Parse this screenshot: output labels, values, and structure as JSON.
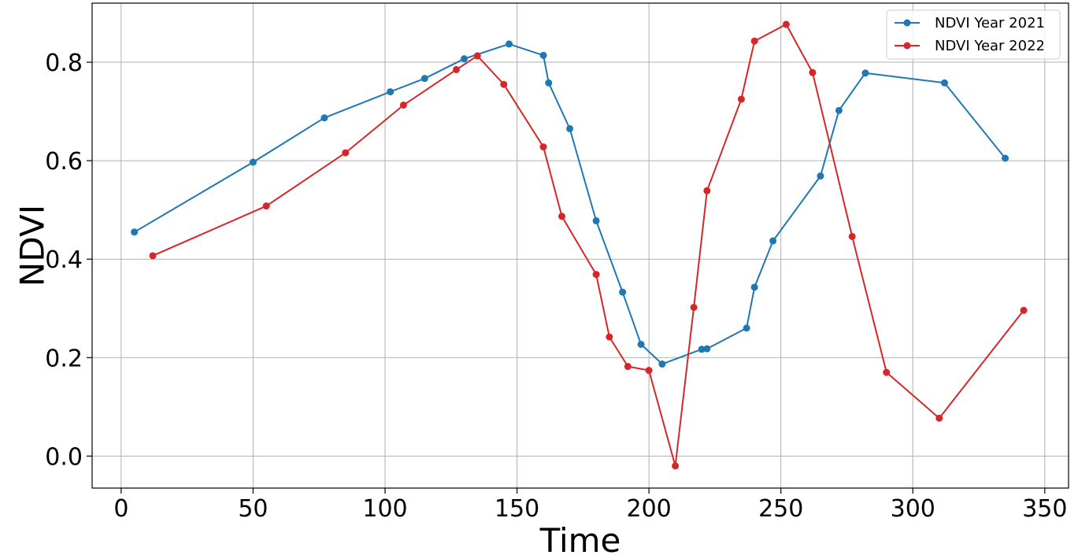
{
  "chart_data": {
    "type": "line",
    "xlabel": "Time",
    "ylabel": "NDVI",
    "xlim": [
      -11,
      359
    ],
    "ylim": [
      -0.065,
      0.92
    ],
    "xticks": [
      0,
      50,
      100,
      150,
      200,
      250,
      300,
      350
    ],
    "yticks": [
      0.0,
      0.2,
      0.4,
      0.6,
      0.8
    ],
    "ytick_labels": [
      "0.0",
      "0.2",
      "0.4",
      "0.6",
      "0.8"
    ],
    "grid": true,
    "legend_position": "top-right",
    "series": [
      {
        "name": "NDVI Year 2021",
        "color": "#1f77b4",
        "marker": "circle",
        "x": [
          5,
          50,
          77,
          102,
          115,
          130,
          147,
          160,
          162,
          170,
          180,
          190,
          197,
          205,
          220,
          222,
          237,
          240,
          247,
          265,
          272,
          282,
          312,
          335
        ],
        "y": [
          0.455,
          0.597,
          0.687,
          0.74,
          0.767,
          0.807,
          0.837,
          0.814,
          0.758,
          0.665,
          0.478,
          0.333,
          0.227,
          0.187,
          0.217,
          0.218,
          0.26,
          0.343,
          0.437,
          0.569,
          0.702,
          0.778,
          0.758,
          0.605
        ]
      },
      {
        "name": "NDVI Year 2022",
        "color": "#d62728",
        "marker": "circle",
        "x": [
          12,
          55,
          85,
          107,
          127,
          135,
          145,
          160,
          167,
          180,
          185,
          192,
          200,
          210,
          217,
          222,
          235,
          240,
          252,
          262,
          277,
          290,
          310,
          342
        ],
        "y": [
          0.407,
          0.508,
          0.616,
          0.713,
          0.785,
          0.813,
          0.755,
          0.628,
          0.487,
          0.369,
          0.242,
          0.182,
          0.174,
          -0.02,
          0.302,
          0.539,
          0.725,
          0.843,
          0.877,
          0.779,
          0.446,
          0.17,
          0.077,
          0.296
        ]
      }
    ]
  }
}
